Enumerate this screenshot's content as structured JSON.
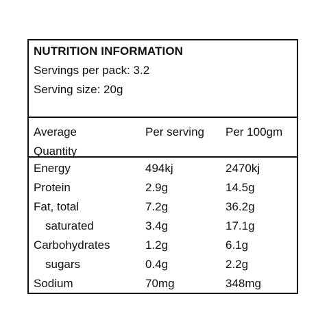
{
  "label": {
    "title": "NUTRITION INFORMATION",
    "servings_per_pack": "Servings per pack: 3.2",
    "serving_size": "Serving size: 20g"
  },
  "columns": {
    "name_line1": "Average",
    "name_line2": "Quantity",
    "per_serving": "Per serving",
    "per_100": "Per 100gm"
  },
  "rows": [
    {
      "name": "Energy",
      "per_serving": "494kj",
      "per_100": "2470kj"
    },
    {
      "name": "Protein",
      "per_serving": "2.9g",
      "per_100": "14.5g"
    },
    {
      "name": "Fat, total",
      "per_serving": "7.2g",
      "per_100": "36.2g"
    },
    {
      "name": "saturated",
      "per_serving": "3.4g",
      "per_100": "17.1g"
    },
    {
      "name": "Carbohydrates",
      "per_serving": "1.2g",
      "per_100": "6.1g"
    },
    {
      "name": "sugars",
      "per_serving": "0.4g",
      "per_100": "2.2g"
    },
    {
      "name": "Sodium",
      "per_serving": "70mg",
      "per_100": "348mg"
    }
  ]
}
